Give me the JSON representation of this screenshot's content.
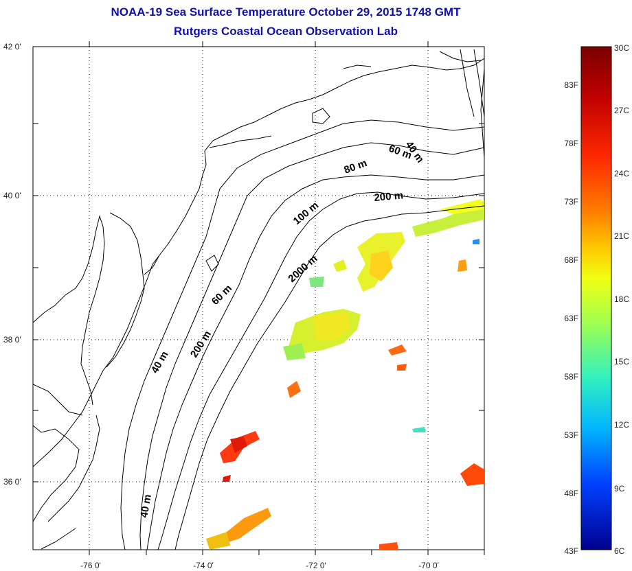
{
  "title": {
    "line1": "NOAA-19 Sea Surface Temperature October 29, 2015 1748 GMT",
    "line2": "Rutgers Coastal Ocean Observation Lab"
  },
  "map": {
    "lon_range": [
      -77,
      -69
    ],
    "lat_range": [
      35,
      42
    ],
    "x_ticks": [
      {
        "lon": -76,
        "label": "-76 0'"
      },
      {
        "lon": -74,
        "label": "-74 0'"
      },
      {
        "lon": -72,
        "label": "-72 0'"
      },
      {
        "lon": -70,
        "label": "-70 0'"
      }
    ],
    "y_ticks": [
      {
        "lat": 42,
        "label": "42 0'"
      },
      {
        "lat": 40,
        "label": "40 0'"
      },
      {
        "lat": 38,
        "label": "38 0'"
      },
      {
        "lat": 36,
        "label": "36 0'"
      }
    ],
    "grid": "dotted",
    "isobath_labels": [
      "40 m",
      "60 m",
      "80 m",
      "200 m",
      "100 m",
      "2000 m",
      "60 m",
      "40 m",
      "200 m",
      "40 m"
    ]
  },
  "colorbar": {
    "celsius_labels": [
      "30C",
      "27C",
      "24C",
      "21C",
      "18C",
      "15C",
      "12C",
      "9C",
      "6C"
    ],
    "fahrenheit_labels": [
      "83F",
      "78F",
      "73F",
      "68F",
      "63F",
      "58F",
      "53F",
      "48F",
      "43F"
    ],
    "colors": [
      "#7a0000",
      "#c00000",
      "#ff2000",
      "#ff7a00",
      "#ffc800",
      "#f0ff10",
      "#9cff60",
      "#30f0c0",
      "#00c8ff",
      "#0070ff",
      "#0010e0",
      "#000090"
    ]
  }
}
